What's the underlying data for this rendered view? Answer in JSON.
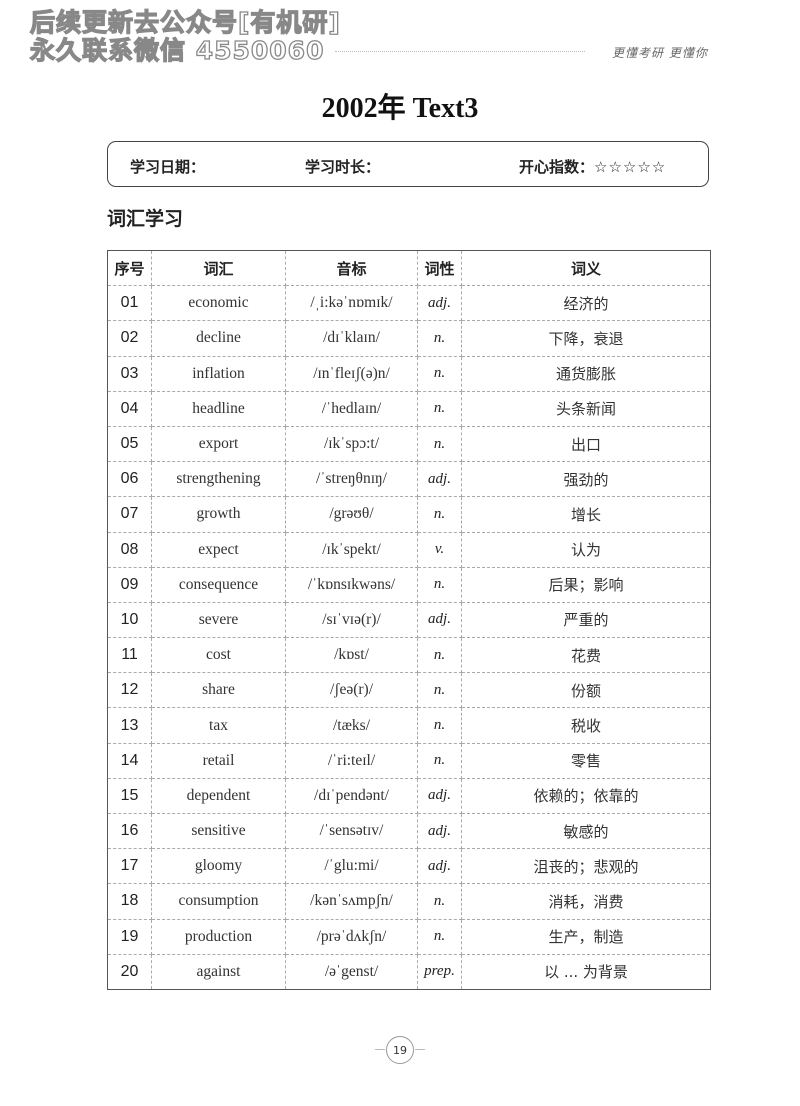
{
  "watermark": {
    "line1": "后续更新去公众号[有机研]",
    "line2": "永久联系微信 4550060"
  },
  "header": {
    "slogan": "更懂考研  更懂你"
  },
  "title": "2002年 Text3",
  "info": {
    "date_label": "学习日期：",
    "duration_label": "学习时长：",
    "happiness_label": "开心指数：",
    "stars": "☆☆☆☆☆",
    "rating": 0
  },
  "section_title": "词汇学习",
  "table": {
    "headers": [
      "序号",
      "词汇",
      "音标",
      "词性",
      "词义"
    ],
    "rows": [
      [
        "01",
        "economic",
        "/ˌi:kəˈnɒmɪk/",
        "adj.",
        "经济的"
      ],
      [
        "02",
        "decline",
        "/dɪˈklaɪn/",
        "n.",
        "下降，衰退"
      ],
      [
        "03",
        "inflation",
        "/ɪnˈfleɪʃ(ə)n/",
        "n.",
        "通货膨胀"
      ],
      [
        "04",
        "headline",
        "/ˈhedlaɪn/",
        "n.",
        "头条新闻"
      ],
      [
        "05",
        "export",
        "/ɪkˈspɔ:t/",
        "n.",
        "出口"
      ],
      [
        "06",
        "strengthening",
        "/ˈstreŋθnɪŋ/",
        "adj.",
        "强劲的"
      ],
      [
        "07",
        "growth",
        "/grəʊθ/",
        "n.",
        "增长"
      ],
      [
        "08",
        "expect",
        "/ɪkˈspekt/",
        "v.",
        "认为"
      ],
      [
        "09",
        "consequence",
        "/ˈkɒnsɪkwəns/",
        "n.",
        "后果；影响"
      ],
      [
        "10",
        "severe",
        "/sɪˈvɪə(r)/",
        "adj.",
        "严重的"
      ],
      [
        "11",
        "cost",
        "/kɒst/",
        "n.",
        "花费"
      ],
      [
        "12",
        "share",
        "/ʃeə(r)/",
        "n.",
        "份额"
      ],
      [
        "13",
        "tax",
        "/tæks/",
        "n.",
        "税收"
      ],
      [
        "14",
        "retail",
        "/ˈri:teɪl/",
        "n.",
        "零售"
      ],
      [
        "15",
        "dependent",
        "/dɪˈpendənt/",
        "adj.",
        "依赖的；依靠的"
      ],
      [
        "16",
        "sensitive",
        "/ˈsensətɪv/",
        "adj.",
        "敏感的"
      ],
      [
        "17",
        "gloomy",
        "/ˈglu:mi/",
        "adj.",
        "沮丧的；悲观的"
      ],
      [
        "18",
        "consumption",
        "/kənˈsʌmpʃn/",
        "n.",
        "消耗，消费"
      ],
      [
        "19",
        "production",
        "/prəˈdʌkʃn/",
        "n.",
        "生产，制造"
      ],
      [
        "20",
        "against",
        "/əˈgenst/",
        "prep.",
        "以 ... 为背景"
      ]
    ]
  },
  "page_number": "19"
}
